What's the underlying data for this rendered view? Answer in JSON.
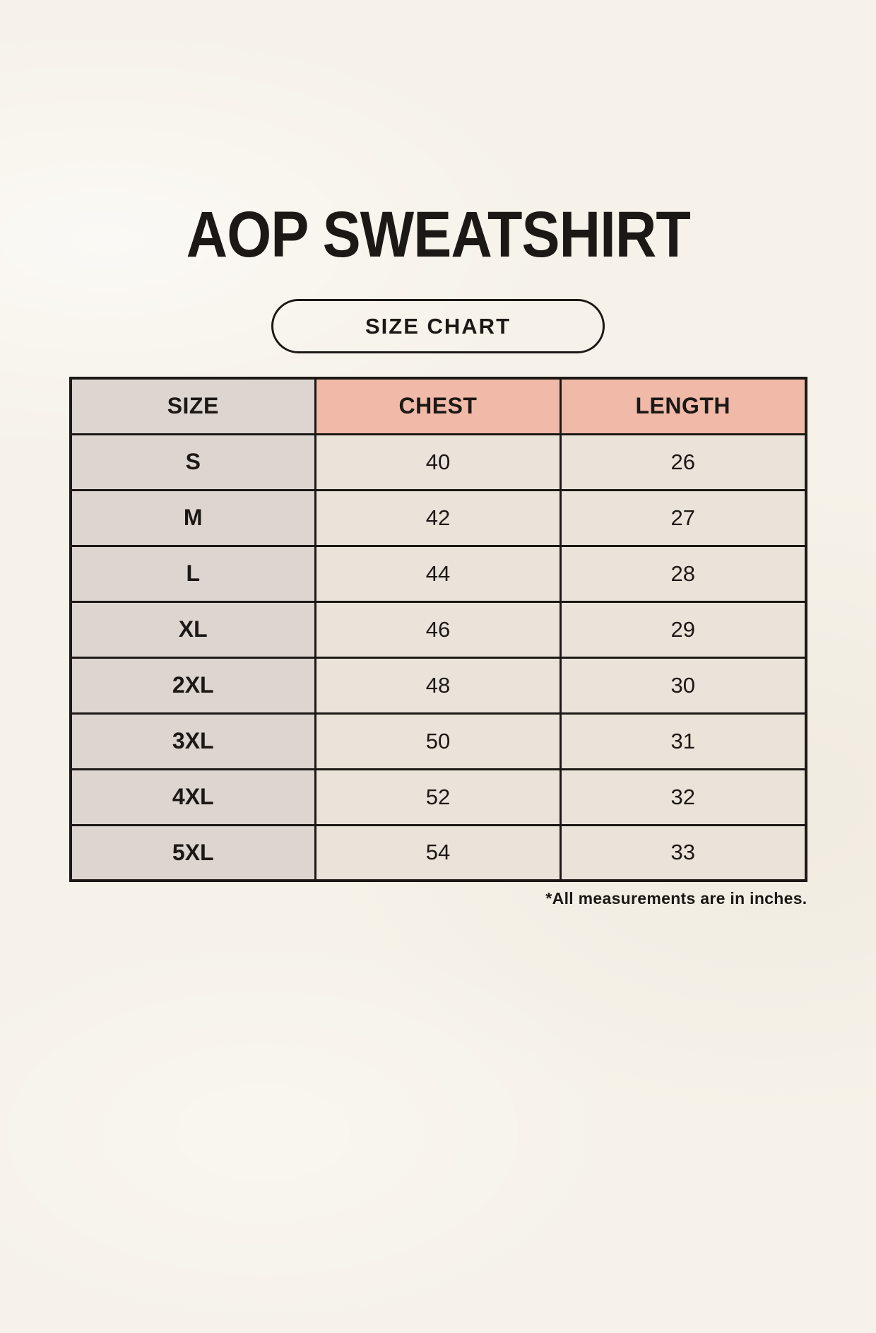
{
  "page": {
    "title": "AOP SWEATSHIRT",
    "badge_label": "SIZE CHART",
    "footnote": "*All measurements are in inches."
  },
  "table": {
    "headers": [
      "SIZE",
      "CHEST",
      "LENGTH"
    ],
    "rows": [
      {
        "size": "S",
        "chest": "40",
        "length": "26"
      },
      {
        "size": "M",
        "chest": "42",
        "length": "27"
      },
      {
        "size": "L",
        "chest": "44",
        "length": "28"
      },
      {
        "size": "XL",
        "chest": "46",
        "length": "29"
      },
      {
        "size": "2XL",
        "chest": "48",
        "length": "30"
      },
      {
        "size": "3XL",
        "chest": "50",
        "length": "31"
      },
      {
        "size": "4XL",
        "chest": "52",
        "length": "32"
      },
      {
        "size": "5XL",
        "chest": "54",
        "length": "33"
      }
    ]
  },
  "chart_data": {
    "type": "table",
    "title": "AOP SWEATSHIRT",
    "subtitle": "SIZE CHART",
    "columns": [
      "SIZE",
      "CHEST",
      "LENGTH"
    ],
    "rows": [
      [
        "S",
        40,
        26
      ],
      [
        "M",
        42,
        27
      ],
      [
        "L",
        44,
        28
      ],
      [
        "XL",
        46,
        29
      ],
      [
        "2XL",
        48,
        30
      ],
      [
        "3XL",
        50,
        31
      ],
      [
        "4XL",
        52,
        32
      ],
      [
        "5XL",
        54,
        33
      ]
    ],
    "units": "inches",
    "note": "*All measurements are in inches."
  },
  "colors": {
    "background": "#f6f2e9",
    "header_size_bg": "#dcd5d0",
    "header_measure_bg": "#f0b9a8",
    "size_column_bg": "#dcd5d0",
    "data_cell_bg": "#eae3d9",
    "border": "#1b1815",
    "text": "#1b1815"
  }
}
